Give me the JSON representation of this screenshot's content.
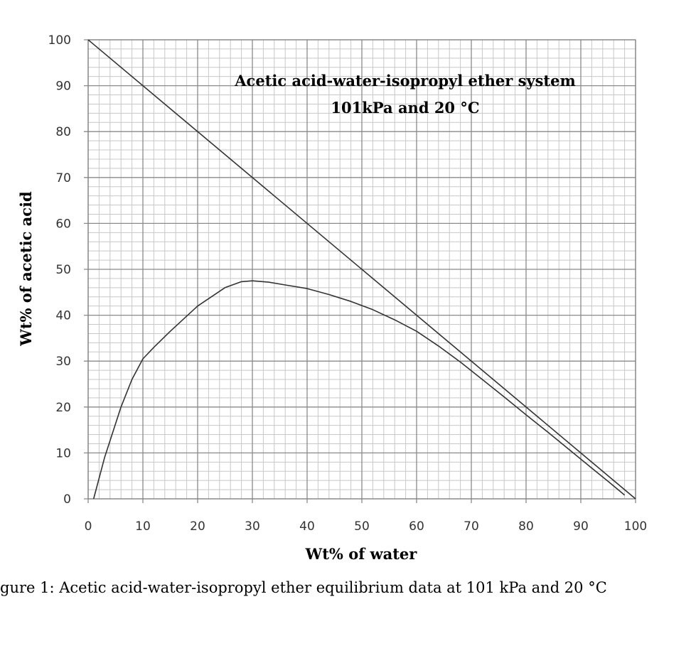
{
  "chart_data": {
    "type": "line",
    "title": "Acetic acid-water-isopropyl ether system",
    "subtitle": "101kPa and 20 °C",
    "xlabel": "Wt% of water",
    "ylabel": "Wt% of acetic acid",
    "caption": "gure 1: Acetic acid-water-isopropyl ether equilibrium data at 101 kPa and 20 °C",
    "xlim": [
      0,
      100
    ],
    "ylim": [
      0,
      100
    ],
    "x_ticks": [
      0,
      10,
      20,
      30,
      40,
      50,
      60,
      70,
      80,
      90,
      100
    ],
    "y_ticks": [
      0,
      10,
      20,
      30,
      40,
      50,
      60,
      70,
      80,
      90,
      100
    ],
    "grid": true,
    "series": [
      {
        "x": [
          0,
          100
        ],
        "y": [
          100,
          0
        ],
        "color": "#333333"
      },
      {
        "x": [
          1,
          3,
          6,
          8,
          10,
          12,
          15,
          20,
          25,
          28,
          30,
          33,
          36,
          40,
          44,
          48,
          52,
          56,
          60,
          64,
          68,
          72,
          76,
          80,
          84,
          88,
          92,
          95,
          98
        ],
        "y": [
          0,
          9,
          20,
          26,
          30.5,
          33,
          36.5,
          42,
          46,
          47.3,
          47.5,
          47.2,
          46.6,
          45.8,
          44.5,
          43,
          41.2,
          39,
          36.5,
          33.3,
          29.8,
          26,
          22.2,
          18.3,
          14.5,
          10.6,
          6.7,
          3.8,
          0.8
        ],
        "color": "#333333"
      }
    ]
  }
}
